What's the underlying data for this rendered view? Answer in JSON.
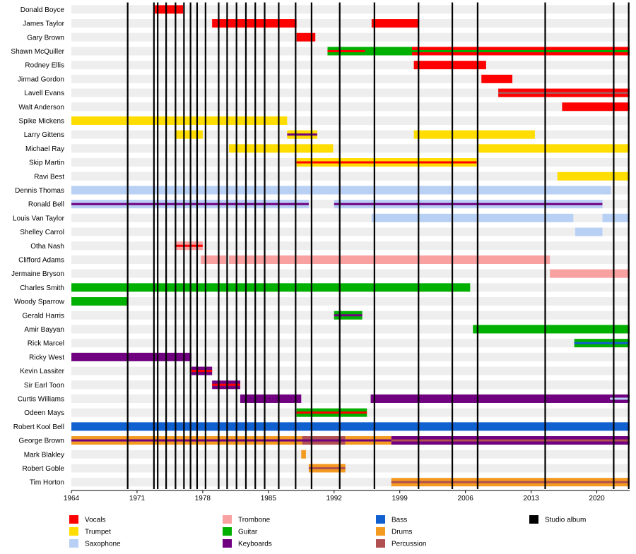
{
  "chart_data": {
    "type": "timeline",
    "x_range": [
      1964,
      2023.5
    ],
    "x_ticks": [
      1964,
      1971,
      1978,
      1985,
      1992,
      1999,
      2006,
      2013,
      2020
    ],
    "x_tick_labels": [
      "1964",
      "1971",
      "1978",
      "1985",
      "1992",
      "1999",
      "2006",
      "2013",
      "2020"
    ],
    "studio_albums": [
      1970,
      1972.8,
      1973.2,
      1974.1,
      1975.1,
      1976,
      1976.7,
      1977.4,
      1978.3,
      1979.7,
      1980.6,
      1981.6,
      1982.6,
      1983.6,
      1984.6,
      1986.1,
      1987.9,
      1989.6,
      1992.6,
      1996.3,
      2001,
      2004.6,
      2007.3,
      2014.5,
      2021.8,
      2023.4
    ],
    "colors": {
      "Vocals": "#ff0000",
      "Trumpet": "#ffdd00",
      "Saxophone": "#b9d0f5",
      "Trombone": "#f9a0a0",
      "Guitar": "#00b000",
      "Keyboards": "#700080",
      "Bass": "#1060d0",
      "Drums": "#f39a20",
      "Percussion": "#b05050",
      "Studio album": "#000000"
    },
    "legend": [
      {
        "label": "Vocals",
        "key": "Vocals"
      },
      {
        "label": "Trumpet",
        "key": "Trumpet"
      },
      {
        "label": "Saxophone",
        "key": "Saxophone"
      },
      {
        "label": "Trombone",
        "key": "Trombone"
      },
      {
        "label": "Guitar",
        "key": "Guitar"
      },
      {
        "label": "Keyboards",
        "key": "Keyboards"
      },
      {
        "label": "Bass",
        "key": "Bass"
      },
      {
        "label": "Drums",
        "key": "Drums"
      },
      {
        "label": "Percussion",
        "key": "Percussion"
      },
      {
        "label": "Studio album",
        "key": "Studio album"
      }
    ],
    "members": [
      {
        "name": "Donald Boyce",
        "bars": [
          {
            "start": 1972.9,
            "end": 1975.9,
            "inst": "Vocals"
          }
        ]
      },
      {
        "name": "James Taylor",
        "bars": [
          {
            "start": 1979,
            "end": 1988,
            "inst": "Vocals"
          },
          {
            "start": 1996,
            "end": 2001,
            "inst": "Vocals"
          }
        ]
      },
      {
        "name": "Gary Brown",
        "bars": [
          {
            "start": 1988,
            "end": 1990,
            "inst": "Vocals"
          }
        ]
      },
      {
        "name": "Shawn McQuiller",
        "bars": [
          {
            "start": 1991.3,
            "end": 1995.3,
            "inst": "Guitar",
            "stripe": "Vocals"
          },
          {
            "start": 1995.3,
            "end": 2000.3,
            "inst": "Guitar"
          },
          {
            "start": 2000.3,
            "end": 2023.5,
            "inst": "Vocals",
            "stripe": "Guitar"
          }
        ]
      },
      {
        "name": "Rodney Ellis",
        "bars": [
          {
            "start": 2000.5,
            "end": 2008.2,
            "inst": "Vocals"
          }
        ]
      },
      {
        "name": "Jirmad Gordon",
        "bars": [
          {
            "start": 2007.7,
            "end": 2011,
            "inst": "Vocals"
          }
        ]
      },
      {
        "name": "Lavell Evans",
        "bars": [
          {
            "start": 2009.5,
            "end": 2023.5,
            "inst": "Vocals",
            "stripe": "Percussion"
          }
        ]
      },
      {
        "name": "Walt Anderson",
        "bars": [
          {
            "start": 2016.3,
            "end": 2023.5,
            "inst": "Vocals"
          }
        ]
      },
      {
        "name": "Spike Mickens",
        "bars": [
          {
            "start": 1964,
            "end": 1987,
            "inst": "Trumpet"
          }
        ]
      },
      {
        "name": "Larry Gittens",
        "bars": [
          {
            "start": 1975,
            "end": 1978,
            "inst": "Trumpet"
          },
          {
            "start": 1987,
            "end": 1990.2,
            "inst": "Trumpet",
            "stripe": "Keyboards"
          },
          {
            "start": 2000.5,
            "end": 2013.4,
            "inst": "Trumpet"
          }
        ]
      },
      {
        "name": "Michael Ray",
        "bars": [
          {
            "start": 1980.8,
            "end": 1991.9,
            "inst": "Trumpet"
          },
          {
            "start": 2007.4,
            "end": 2023.5,
            "inst": "Trumpet"
          }
        ]
      },
      {
        "name": "Skip Martin",
        "bars": [
          {
            "start": 1988,
            "end": 2007.2,
            "inst": "Trumpet",
            "stripe": "Vocals"
          }
        ]
      },
      {
        "name": "Ravi Best",
        "bars": [
          {
            "start": 2015.8,
            "end": 2023.5,
            "inst": "Trumpet"
          }
        ]
      },
      {
        "name": "Dennis Thomas",
        "bars": [
          {
            "start": 1964,
            "end": 2021.5,
            "inst": "Saxophone"
          }
        ]
      },
      {
        "name": "Ronald Bell",
        "bars": [
          {
            "start": 1964,
            "end": 1989.3,
            "inst": "Saxophone",
            "stripe": "Keyboards"
          },
          {
            "start": 1992,
            "end": 2020.6,
            "inst": "Saxophone",
            "stripe": "Keyboards"
          }
        ]
      },
      {
        "name": "Louis Van Taylor",
        "bars": [
          {
            "start": 1996,
            "end": 2017.5,
            "inst": "Saxophone"
          },
          {
            "start": 2020.6,
            "end": 2023.5,
            "inst": "Saxophone"
          }
        ]
      },
      {
        "name": "Shelley Carrol",
        "bars": [
          {
            "start": 2017.7,
            "end": 2020.6,
            "inst": "Saxophone"
          }
        ]
      },
      {
        "name": "Otha Nash",
        "bars": [
          {
            "start": 1975,
            "end": 1978,
            "inst": "Trombone",
            "stripe": "Vocals"
          }
        ]
      },
      {
        "name": "Clifford Adams",
        "bars": [
          {
            "start": 1977.8,
            "end": 1980.5,
            "inst": "Trombone"
          },
          {
            "start": 1980.8,
            "end": 2015,
            "inst": "Trombone"
          }
        ]
      },
      {
        "name": "Jermaine Bryson",
        "bars": [
          {
            "start": 2015,
            "end": 2023.5,
            "inst": "Trombone"
          }
        ]
      },
      {
        "name": "Charles Smith",
        "bars": [
          {
            "start": 1964,
            "end": 2006.5,
            "inst": "Guitar"
          }
        ]
      },
      {
        "name": "Woody Sparrow",
        "bars": [
          {
            "start": 1964,
            "end": 1970,
            "inst": "Guitar"
          }
        ]
      },
      {
        "name": "Gerald Harris",
        "bars": [
          {
            "start": 1992,
            "end": 1995,
            "inst": "Guitar",
            "stripe": "Keyboards"
          }
        ]
      },
      {
        "name": "Amir Bayyan",
        "bars": [
          {
            "start": 2006.8,
            "end": 2023.5,
            "inst": "Guitar"
          }
        ]
      },
      {
        "name": "Rick Marcel",
        "bars": [
          {
            "start": 2017.6,
            "end": 2023.5,
            "inst": "Guitar",
            "stripe": "Bass"
          }
        ]
      },
      {
        "name": "Ricky West",
        "bars": [
          {
            "start": 1964,
            "end": 1976.8,
            "inst": "Keyboards"
          }
        ]
      },
      {
        "name": "Kevin Lassiter",
        "bars": [
          {
            "start": 1976.8,
            "end": 1979,
            "inst": "Keyboards",
            "stripe": "Vocals"
          }
        ]
      },
      {
        "name": "Sir Earl Toon",
        "bars": [
          {
            "start": 1979,
            "end": 1982,
            "inst": "Keyboards",
            "stripe": "Vocals"
          }
        ]
      },
      {
        "name": "Curtis Williams",
        "bars": [
          {
            "start": 1982,
            "end": 1988.5,
            "inst": "Keyboards"
          },
          {
            "start": 1995.9,
            "end": 2023.5,
            "inst": "Keyboards",
            "stripe_from": 2021.4,
            "stripe": "Saxophone"
          }
        ]
      },
      {
        "name": "Odeen Mays",
        "bars": [
          {
            "start": 1988,
            "end": 1995.5,
            "inst": "Guitar",
            "stripe": "Vocals"
          }
        ]
      },
      {
        "name": "Robert Kool Bell",
        "bars": [
          {
            "start": 1964,
            "end": 2023.5,
            "inst": "Bass"
          }
        ]
      },
      {
        "name": "George Brown",
        "bars": [
          {
            "start": 1964,
            "end": 1988.6,
            "inst": "Drums",
            "stripe": "Keyboards"
          },
          {
            "start": 1988.6,
            "end": 1993.2,
            "inst": "Percussion",
            "stripe": "Keyboards"
          },
          {
            "start": 1993.2,
            "end": 1998.1,
            "inst": "Drums",
            "stripe": "Keyboards"
          },
          {
            "start": 1998.1,
            "end": 2023.5,
            "inst": "Keyboards",
            "stripe": "Percussion"
          }
        ]
      },
      {
        "name": "Mark Blakley",
        "bars": [
          {
            "start": 1988.5,
            "end": 1989,
            "inst": "Drums"
          }
        ]
      },
      {
        "name": "Robert Goble",
        "bars": [
          {
            "start": 1989.3,
            "end": 1993.2,
            "inst": "Drums",
            "stripe": "Percussion"
          }
        ]
      },
      {
        "name": "Tim Horton",
        "bars": [
          {
            "start": 1998.1,
            "end": 2023.5,
            "inst": "Drums",
            "stripe": "Percussion"
          }
        ]
      }
    ]
  }
}
